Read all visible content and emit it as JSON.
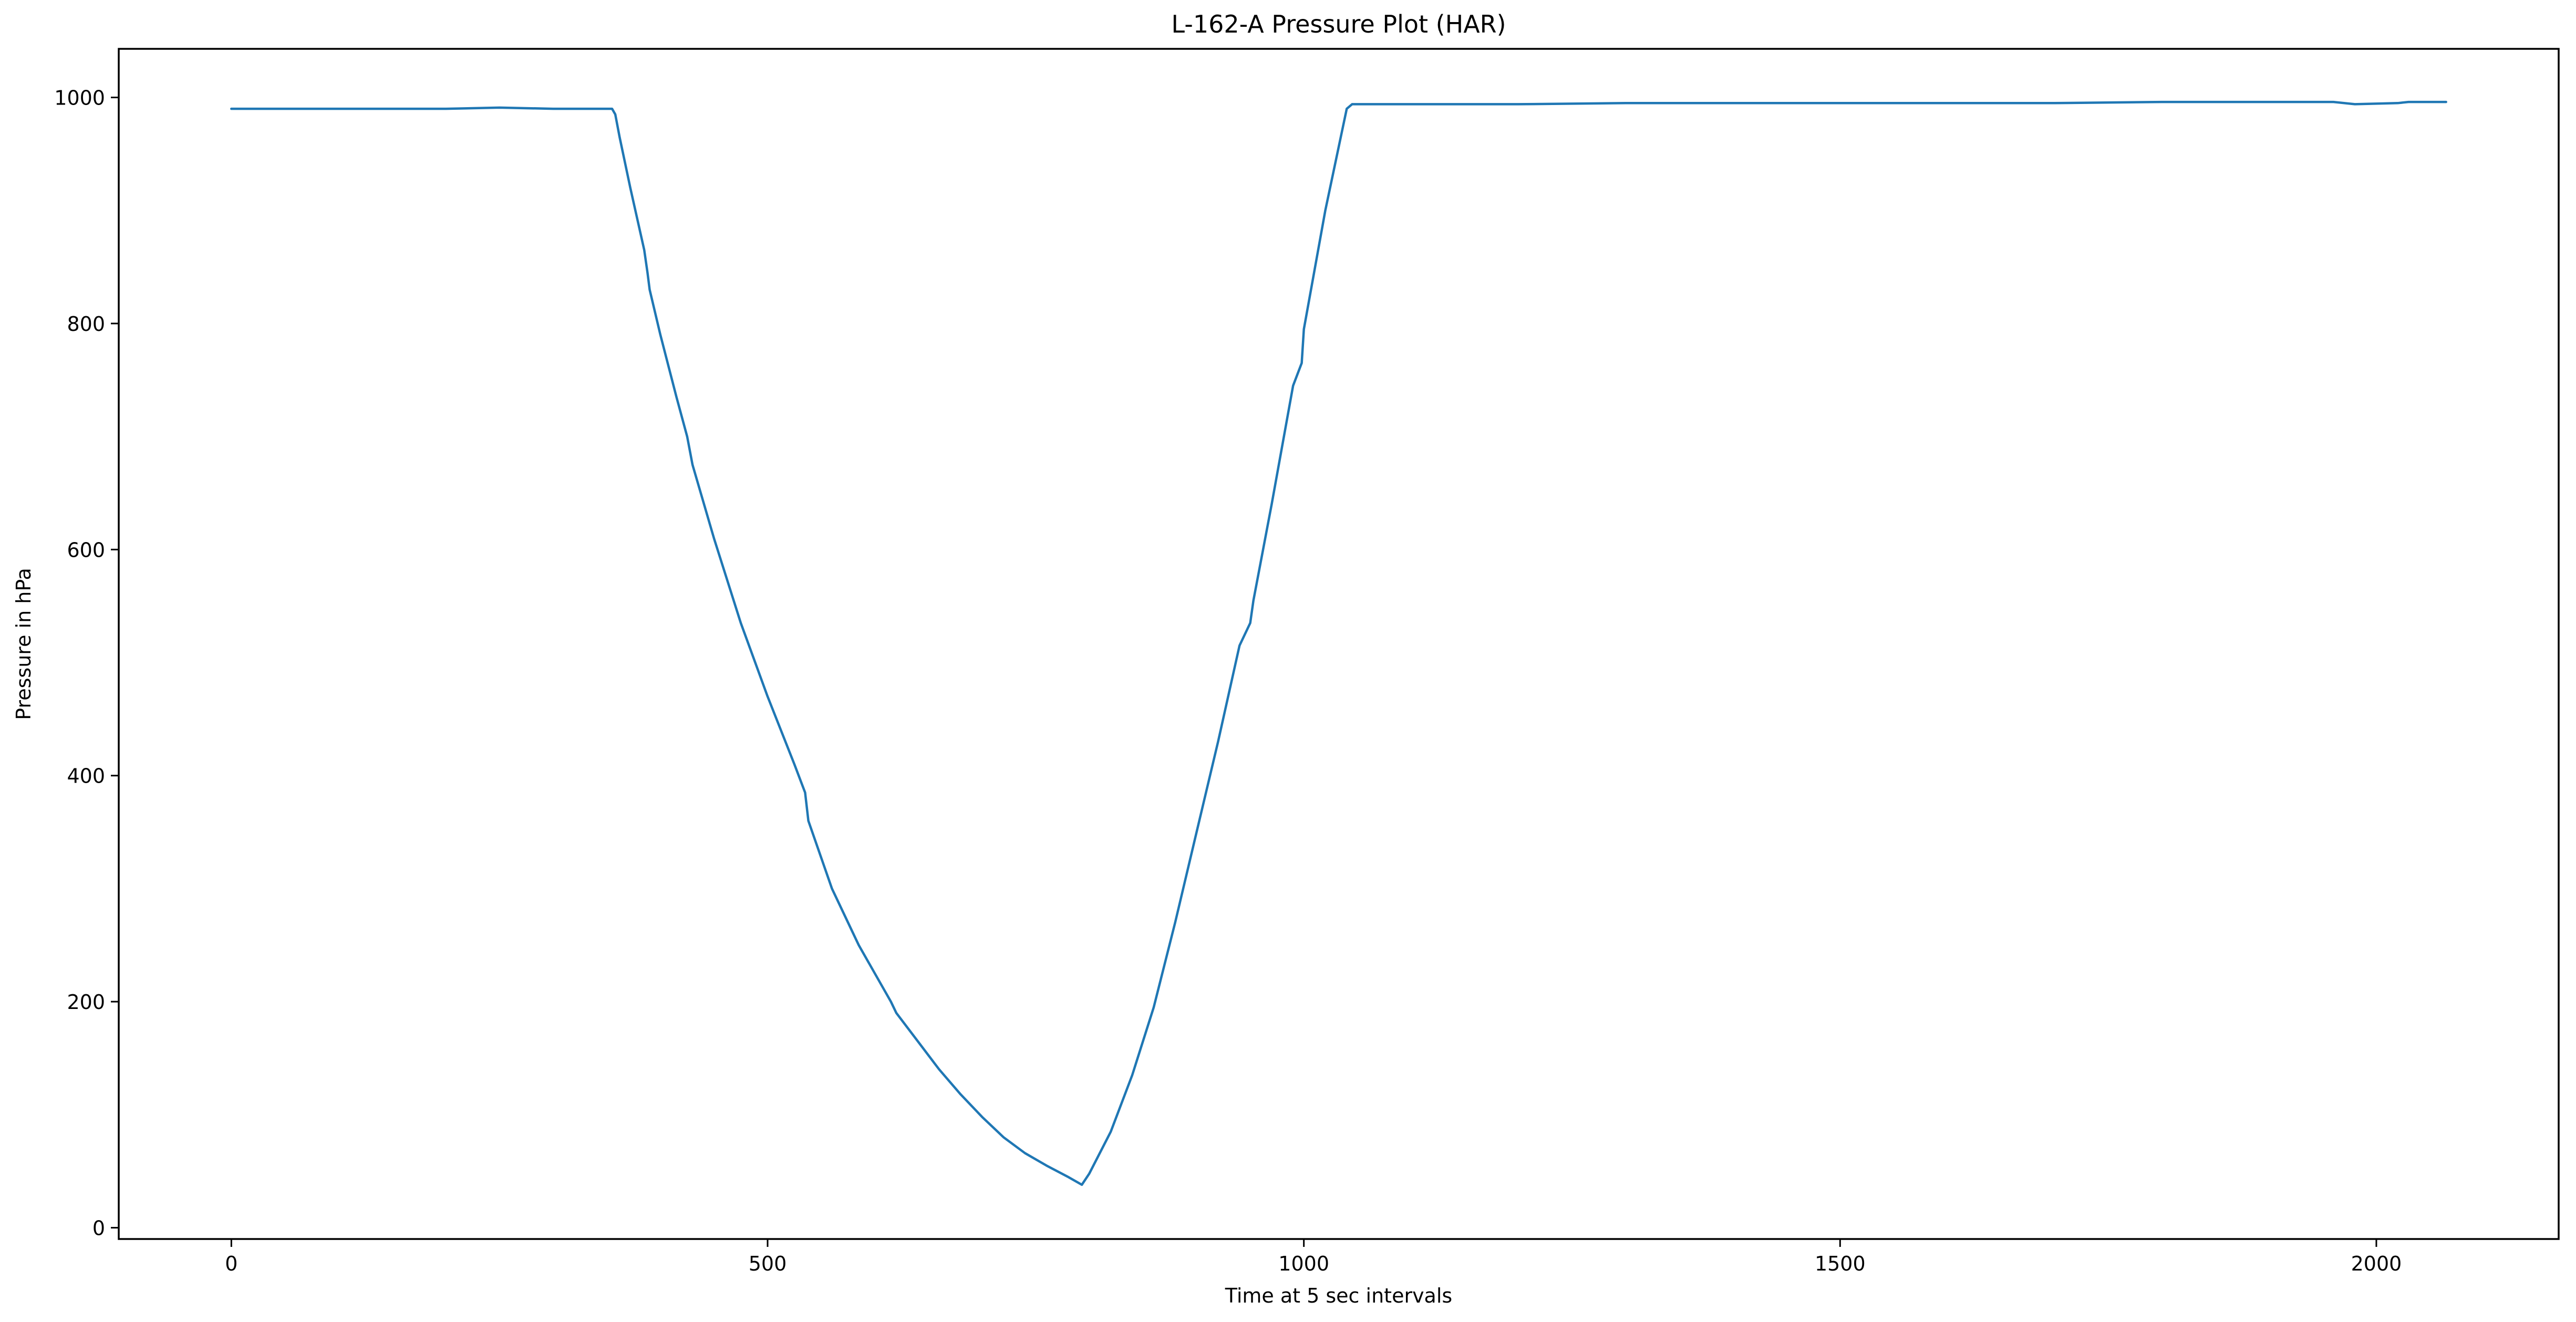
{
  "chart_data": {
    "type": "line",
    "title": "L-162-A Pressure Plot (HAR)",
    "xlabel": "Time at 5 sec intervals",
    "ylabel": "Pressure in hPa",
    "xlim": [
      -105,
      2170
    ],
    "ylim": [
      -10,
      1043
    ],
    "xticks": [
      0,
      500,
      1000,
      1500,
      2000
    ],
    "yticks": [
      0,
      200,
      400,
      600,
      800,
      1000
    ],
    "grid": false,
    "series": [
      {
        "name": "",
        "color": "#1f77b4",
        "x": [
          0,
          100,
          200,
          250,
          300,
          355,
          358,
          362,
          372,
          385,
          388,
          390,
          400,
          415,
          425,
          430,
          450,
          475,
          500,
          525,
          535,
          538,
          560,
          580,
          585,
          600,
          615,
          620,
          640,
          660,
          680,
          700,
          720,
          740,
          760,
          780,
          793,
          800,
          820,
          840,
          860,
          880,
          900,
          920,
          940,
          950,
          953,
          970,
          990,
          998,
          1000,
          1020,
          1040,
          1045,
          1100,
          1200,
          1300,
          1400,
          1500,
          1600,
          1700,
          1800,
          1900,
          1960,
          1980,
          2020,
          2030,
          2065
        ],
        "y": [
          990,
          990,
          990,
          991,
          990,
          990,
          985,
          965,
          920,
          865,
          845,
          830,
          790,
          735,
          700,
          675,
          610,
          535,
          470,
          410,
          385,
          360,
          300,
          260,
          250,
          225,
          200,
          190,
          165,
          140,
          118,
          98,
          80,
          66,
          55,
          45,
          38,
          48,
          85,
          135,
          195,
          270,
          350,
          430,
          515,
          535,
          555,
          640,
          745,
          765,
          795,
          900,
          990,
          994,
          994,
          994,
          995,
          995,
          995,
          995,
          995,
          996,
          996,
          996,
          994,
          995,
          996,
          996
        ]
      }
    ]
  },
  "colors": {
    "line": "#1f77b4",
    "axis": "#000000",
    "background": "#ffffff"
  }
}
